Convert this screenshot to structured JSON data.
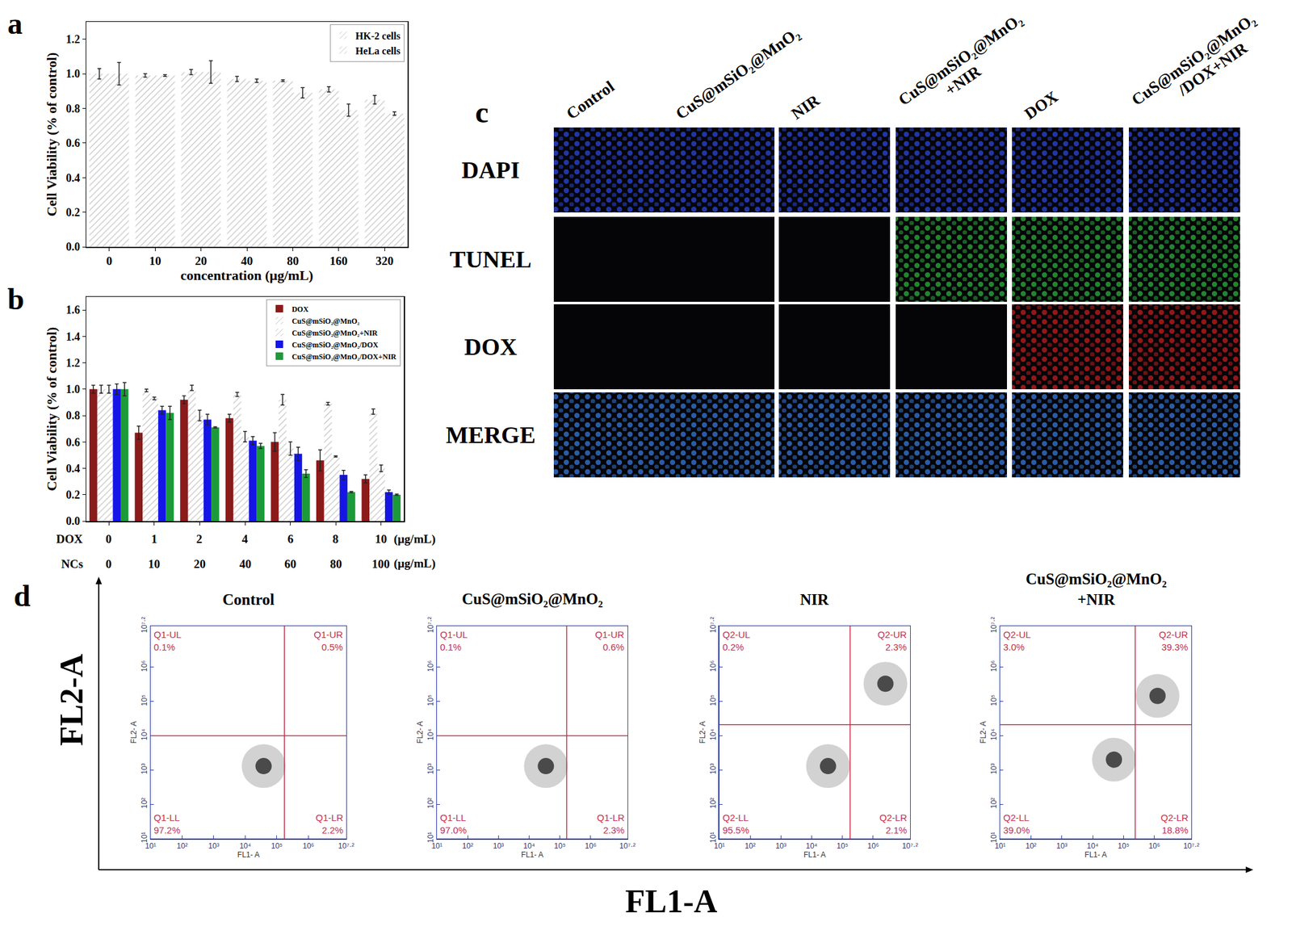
{
  "chart_data": [
    {
      "panel": "a",
      "type": "bar",
      "x_label": "concentration (μg/mL)",
      "y_label": "Cell Viability (% of control)",
      "categories": [
        "0",
        "10",
        "20",
        "40",
        "80",
        "160",
        "320"
      ],
      "series": [
        {
          "name": "HK-2 cells",
          "color": "#f2277a",
          "marker": "hatched",
          "values": [
            1.0,
            0.99,
            1.01,
            0.97,
            0.96,
            0.91,
            0.85
          ],
          "errors": [
            0.03,
            0.01,
            0.015,
            0.015,
            0.005,
            0.015,
            0.025
          ]
        },
        {
          "name": "HeLa cells",
          "color": "#9b3cf0",
          "marker": "hatched",
          "values": [
            1.0,
            0.99,
            1.01,
            0.96,
            0.89,
            0.79,
            0.77
          ],
          "errors": [
            0.065,
            0.005,
            0.065,
            0.01,
            0.03,
            0.035,
            0.01
          ]
        }
      ],
      "ylim": [
        0,
        1.3
      ],
      "yticks": [
        {
          "value": 0,
          "label": "0.0"
        },
        0.2,
        0.4,
        0.6,
        0.8,
        {
          "value": 1,
          "label": "1.0"
        },
        1.2
      ],
      "legend": "top right"
    },
    {
      "panel": "b",
      "type": "bar",
      "y_label": "Cell Viability (% of control)",
      "categories": [
        "0",
        "1",
        "2",
        "4",
        "6",
        "8",
        "10"
      ],
      "row_name": "DOX",
      "categories2": [
        "0",
        "10",
        "20",
        "40",
        "60",
        "80",
        "100"
      ],
      "row2_name": "NCs",
      "unit": "(μg/mL)",
      "series": [
        {
          "name": "DOX",
          "color": "#8b1a1a",
          "marker": "solid",
          "values": [
            1.0,
            0.67,
            0.92,
            0.78,
            0.6,
            0.46,
            0.32
          ],
          "errors": [
            0.03,
            0.05,
            0.03,
            0.03,
            0.07,
            0.08,
            0.03
          ]
        },
        {
          "name": "CuS@mSiO₂@MnO₂",
          "color": "#2e9c9c",
          "marker": "hatched",
          "values": [
            1.0,
            0.99,
            1.01,
            0.96,
            0.92,
            0.89,
            0.83
          ],
          "errors": [
            0.03,
            0.01,
            0.02,
            0.015,
            0.04,
            0.01,
            0.02
          ]
        },
        {
          "name": "CuS@mSiO₂@MnO₂+NIR",
          "color": "#ee3a80",
          "marker": "hatched",
          "values": [
            1.0,
            0.93,
            0.8,
            0.64,
            0.55,
            0.49,
            0.4
          ],
          "errors": [
            0.03,
            0.01,
            0.04,
            0.04,
            0.05,
            0.005,
            0.025
          ]
        },
        {
          "name": "CuS@mSiO₂@MnO₂/DOX",
          "color": "#1515e6",
          "marker": "solid",
          "values": [
            1.0,
            0.84,
            0.77,
            0.61,
            0.51,
            0.35,
            0.22
          ],
          "errors": [
            0.04,
            0.03,
            0.04,
            0.03,
            0.05,
            0.035,
            0.015
          ]
        },
        {
          "name": "CuS@mSiO₂@MnO₂/DOX+NIR",
          "color": "#1c9a3a",
          "marker": "solid",
          "values": [
            1.0,
            0.82,
            0.71,
            0.57,
            0.36,
            0.22,
            0.2
          ],
          "errors": [
            0.05,
            0.05,
            0.005,
            0.02,
            0.03,
            0.005,
            0.005
          ]
        }
      ],
      "ylim": [
        0,
        1.7
      ],
      "yticks": [
        {
          "value": 0,
          "label": "0.0"
        },
        0.2,
        0.4,
        0.6,
        0.8,
        {
          "value": 1,
          "label": "1.0"
        },
        1.2,
        1.4,
        1.6
      ],
      "legend": "top right"
    },
    {
      "panel": "d",
      "type": "scatter",
      "log": true,
      "color": "#333333",
      "title_lines": [
        "Control"
      ],
      "x_label": "FL1- A",
      "y_label": "FL2- A",
      "xlim": [
        10,
        15848932
      ],
      "ylim": [
        10,
        15848932
      ],
      "xticks": [
        {
          "value": 10,
          "label": "10¹"
        },
        {
          "value": 100,
          "label": "10²"
        },
        {
          "value": 1000,
          "label": "10³"
        },
        {
          "value": 10000,
          "label": "10⁴"
        },
        {
          "value": 100000,
          "label": "10⁵"
        },
        {
          "value": 1000000,
          "label": "10⁶"
        },
        {
          "value": 15848932,
          "label": "10⁷·²"
        }
      ],
      "yticks": [
        {
          "value": 10,
          "label": "10¹"
        },
        {
          "value": 100,
          "label": "10²"
        },
        {
          "value": 1000,
          "label": "10³"
        },
        {
          "value": 10000,
          "label": "10⁴"
        },
        {
          "value": 100000,
          "label": "10⁵"
        },
        {
          "value": 1000000,
          "label": "10⁶"
        },
        {
          "value": 15848932,
          "label": "10⁷·²"
        }
      ],
      "gate": {
        "x": 174000,
        "y": 10000
      },
      "quadrants": [
        {
          "name": "Q1-UL",
          "value": 0.1,
          "value_label": "0.1%"
        },
        {
          "name": "Q1-UR",
          "value": 0.5,
          "value_label": "0.5%"
        },
        {
          "name": "Q1-LL",
          "value": 97.2,
          "value_label": "97.2%"
        },
        {
          "name": "Q1-LR",
          "value": 2.2,
          "value_label": "2.2%"
        }
      ],
      "x": [
        38000
      ],
      "y": [
        1300
      ]
    },
    {
      "type": "scatter",
      "log": true,
      "color": "#333333",
      "title_lines": [
        "CuS@mSiO₂@MnO₂"
      ],
      "x_label": "FL1- A",
      "y_label": "FL2- A",
      "xlim": [
        10,
        15848932
      ],
      "ylim": [
        10,
        15848932
      ],
      "xticks": [
        {
          "value": 10,
          "label": "10¹"
        },
        {
          "value": 100,
          "label": "10²"
        },
        {
          "value": 1000,
          "label": "10³"
        },
        {
          "value": 10000,
          "label": "10⁴"
        },
        {
          "value": 100000,
          "label": "10⁵"
        },
        {
          "value": 1000000,
          "label": "10⁶"
        },
        {
          "value": 15848932,
          "label": "10⁷·²"
        }
      ],
      "yticks": [
        {
          "value": 10,
          "label": "10¹"
        },
        {
          "value": 100,
          "label": "10²"
        },
        {
          "value": 1000,
          "label": "10³"
        },
        {
          "value": 10000,
          "label": "10⁴"
        },
        {
          "value": 100000,
          "label": "10⁵"
        },
        {
          "value": 1000000,
          "label": "10⁶"
        },
        {
          "value": 15848932,
          "label": "10⁷·²"
        }
      ],
      "gate": {
        "x": 166000,
        "y": 10000
      },
      "quadrants": [
        {
          "name": "Q1-UL",
          "value": 0.1,
          "value_label": "0.1%"
        },
        {
          "name": "Q1-UR",
          "value": 0.6,
          "value_label": "0.6%"
        },
        {
          "name": "Q1-LL",
          "value": 97.0,
          "value_label": "97.0%"
        },
        {
          "name": "Q1-LR",
          "value": 2.3,
          "value_label": "2.3%"
        }
      ],
      "x": [
        35000
      ],
      "y": [
        1300
      ]
    },
    {
      "type": "scatter",
      "log": true,
      "color": "#333333",
      "title_lines": [
        "NIR"
      ],
      "x_label": "FL1- A",
      "y_label": "FL2- A",
      "xlim": [
        10,
        15848932
      ],
      "ylim": [
        10,
        15848932
      ],
      "xticks": [
        {
          "value": 10,
          "label": "10¹"
        },
        {
          "value": 100,
          "label": "10²"
        },
        {
          "value": 1000,
          "label": "10³"
        },
        {
          "value": 10000,
          "label": "10⁴"
        },
        {
          "value": 100000,
          "label": "10⁵"
        },
        {
          "value": 1000000,
          "label": "10⁶"
        },
        {
          "value": 15848932,
          "label": "10⁷·²"
        }
      ],
      "yticks": [
        {
          "value": 10,
          "label": "10¹"
        },
        {
          "value": 100,
          "label": "10²"
        },
        {
          "value": 1000,
          "label": "10³"
        },
        {
          "value": 10000,
          "label": "10⁴"
        },
        {
          "value": 100000,
          "label": "10⁵"
        },
        {
          "value": 1000000,
          "label": "10⁶"
        },
        {
          "value": 15848932,
          "label": "10⁷·²"
        }
      ],
      "gate": {
        "x": 178000,
        "y": 21000
      },
      "quadrants": [
        {
          "name": "Q2-UL",
          "value": 0.2,
          "value_label": "0.2%"
        },
        {
          "name": "Q2-UR",
          "value": 2.3,
          "value_label": "2.3%"
        },
        {
          "name": "Q2-LL",
          "value": 95.5,
          "value_label": "95.5%"
        },
        {
          "name": "Q2-LR",
          "value": 2.1,
          "value_label": "2.1%"
        }
      ],
      "x": [
        34000,
        2500000
      ],
      "y": [
        1300,
        330000
      ]
    },
    {
      "type": "scatter",
      "log": true,
      "color": "#333333",
      "title_lines": [
        "CuS@mSiO₂@MnO₂",
        "+NIR"
      ],
      "x_label": "FL1- A",
      "y_label": "FL2- A",
      "xlim": [
        10,
        15848932
      ],
      "ylim": [
        10,
        15848932
      ],
      "xticks": [
        {
          "value": 10,
          "label": "10¹"
        },
        {
          "value": 100,
          "label": "10²"
        },
        {
          "value": 1000,
          "label": "10³"
        },
        {
          "value": 10000,
          "label": "10⁴"
        },
        {
          "value": 100000,
          "label": "10⁵"
        },
        {
          "value": 1000000,
          "label": "10⁶"
        },
        {
          "value": 15848932,
          "label": "10⁷·²"
        }
      ],
      "yticks": [
        {
          "value": 10,
          "label": "10¹"
        },
        {
          "value": 100,
          "label": "10²"
        },
        {
          "value": 1000,
          "label": "10³"
        },
        {
          "value": 10000,
          "label": "10⁴"
        },
        {
          "value": 100000,
          "label": "10⁵"
        },
        {
          "value": 1000000,
          "label": "10⁶"
        },
        {
          "value": 15848932,
          "label": "10⁷·²"
        }
      ],
      "gate": {
        "x": 240000,
        "y": 21000
      },
      "quadrants": [
        {
          "name": "Q2-UL",
          "value": 3.0,
          "value_label": "3.0%"
        },
        {
          "name": "Q2-UR",
          "value": 39.3,
          "value_label": "39.3%"
        },
        {
          "name": "Q2-LL",
          "value": 39.0,
          "value_label": "39.0%"
        },
        {
          "name": "Q2-LR",
          "value": 18.8,
          "value_label": "18.8%"
        }
      ],
      "x": [
        49000,
        1270000
      ],
      "y": [
        2000,
        145000
      ]
    }
  ],
  "micrographs": {
    "panel": "c",
    "columns": [
      [
        "Control"
      ],
      [
        "CuS@mSiO₂@MnO₂"
      ],
      [
        "NIR"
      ],
      [
        "CuS@mSiO₂@MnO₂",
        "+NIR"
      ],
      [
        "DOX"
      ],
      [
        "CuS@mSiO₂@MnO₂",
        "/DOX+NIR"
      ]
    ],
    "rows": [
      {
        "name": "DAPI",
        "color": "#3050ff",
        "signal": [
          true,
          true,
          true,
          true,
          true,
          true
        ]
      },
      {
        "name": "TUNEL",
        "color": "#33cc44",
        "signal": [
          false,
          false,
          false,
          true,
          true,
          true
        ]
      },
      {
        "name": "DOX",
        "color": "#e52020",
        "signal": [
          false,
          false,
          false,
          false,
          true,
          true
        ]
      },
      {
        "name": "MERGE",
        "color": "#3f8cff",
        "signal": [
          true,
          true,
          true,
          true,
          true,
          true
        ]
      }
    ]
  },
  "shared_axes": {
    "x": "FL1-A",
    "y": "FL2-A"
  }
}
